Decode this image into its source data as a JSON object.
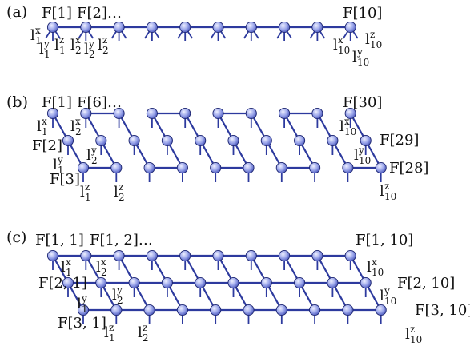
{
  "panels": {
    "a": {
      "label": "(a)",
      "tensor_labels": [
        "F[1]",
        "F[2]…",
        "F[10]"
      ],
      "leg_labels": [
        {
          "base": "l",
          "sup": "x",
          "sub": "1"
        },
        {
          "base": "l",
          "sup": "y",
          "sub": "1"
        },
        {
          "base": "l",
          "sup": "z",
          "sub": "1"
        },
        {
          "base": "l",
          "sup": "x",
          "sub": "2"
        },
        {
          "base": "l",
          "sup": "y",
          "sub": "2"
        },
        {
          "base": "l",
          "sup": "z",
          "sub": "2"
        },
        {
          "base": "l",
          "sup": "x",
          "sub": "10"
        },
        {
          "base": "l",
          "sup": "y",
          "sub": "10"
        },
        {
          "base": "l",
          "sup": "z",
          "sub": "10"
        }
      ]
    },
    "b": {
      "label": "(b)",
      "tensor_labels": [
        "F[1]",
        "F[6]…",
        "F[2]",
        "F[3]",
        "F[30]",
        "F[29]",
        "F[28]"
      ],
      "leg_labels": [
        {
          "base": "l",
          "sup": "x",
          "sub": "1"
        },
        {
          "base": "l",
          "sup": "x",
          "sub": "2"
        },
        {
          "base": "l",
          "sup": "y",
          "sub": "1"
        },
        {
          "base": "l",
          "sup": "y",
          "sub": "2"
        },
        {
          "base": "l",
          "sup": "z",
          "sub": "1"
        },
        {
          "base": "l",
          "sup": "z",
          "sub": "2"
        },
        {
          "base": "l",
          "sup": "x",
          "sub": "10"
        },
        {
          "base": "l",
          "sup": "y",
          "sub": "10"
        },
        {
          "base": "l",
          "sup": "z",
          "sub": "10"
        }
      ]
    },
    "c": {
      "label": "(c)",
      "tensor_labels": [
        "F[1, 1]",
        "F[1, 2]…",
        "F[1, 10]",
        "F[2, 1]",
        "F[2, 10]",
        "F[3, 1]",
        "F[3, 10]"
      ],
      "leg_labels": [
        {
          "base": "l",
          "sup": "x",
          "sub": "1"
        },
        {
          "base": "l",
          "sup": "x",
          "sub": "2"
        },
        {
          "base": "l",
          "sup": "y",
          "sub": "1"
        },
        {
          "base": "l",
          "sup": "y",
          "sub": "2"
        },
        {
          "base": "l",
          "sup": "z",
          "sub": "1"
        },
        {
          "base": "l",
          "sup": "z",
          "sub": "2"
        },
        {
          "base": "l",
          "sup": "x",
          "sub": "10"
        },
        {
          "base": "l",
          "sup": "y",
          "sub": "10"
        },
        {
          "base": "l",
          "sup": "z",
          "sub": "10"
        }
      ]
    }
  },
  "colors": {
    "edge": "#2d3a9e",
    "node_light": "#dfe3ff",
    "node_dark": "#5a67c9"
  }
}
